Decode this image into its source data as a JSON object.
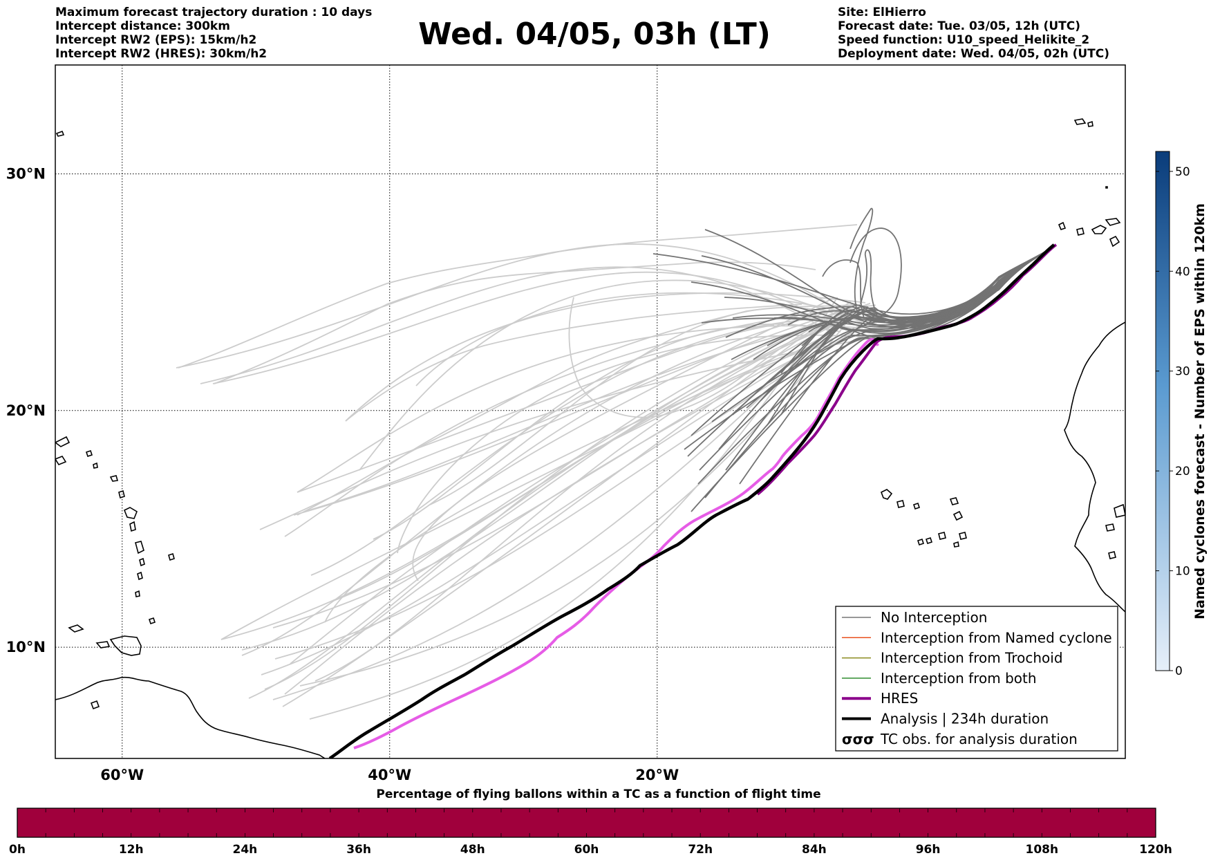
{
  "header": {
    "left": [
      "Maximum forecast trajectory duration : 10 days",
      "Intercept distance: 300km",
      "Intercept RW2 (EPS):  15km/h2",
      "Intercept RW2 (HRES): 30km/h2"
    ],
    "title": "Wed. 04/05, 03h (LT)",
    "right": [
      "Site: ElHierro",
      "Forecast date: Tue. 03/05, 12h (UTC)",
      "Speed function: U10_speed_Helikite_2",
      "Deployment date: Wed. 04/05, 02h (UTC)"
    ]
  },
  "map": {
    "lon_range": [
      -65,
      15
    ],
    "lat_range": [
      5.3,
      34.6
    ],
    "lon_ticks": [
      {
        "value": -60,
        "label": "60°W"
      },
      {
        "value": -40,
        "label": "40°W"
      },
      {
        "value": -20,
        "label": "20°W"
      }
    ],
    "lat_ticks": [
      {
        "value": 10,
        "label": "10°N"
      },
      {
        "value": 20,
        "label": "20°N"
      },
      {
        "value": 30,
        "label": "30°N"
      }
    ],
    "grid": "dotted"
  },
  "legend": {
    "items": [
      {
        "label": "No Interception",
        "color": "#777777",
        "style": "thin"
      },
      {
        "label": "Interception from Named cyclone",
        "color": "#e8501e",
        "style": "thin"
      },
      {
        "label": "Interception from Trochoid",
        "color": "#8a8a1e",
        "style": "thin"
      },
      {
        "label": "Interception from both",
        "color": "#2e8b2e",
        "style": "thin"
      },
      {
        "label": "HRES",
        "color": "#8b008b",
        "style": "thick"
      },
      {
        "label": "Analysis | 234h duration",
        "color": "#000000",
        "style": "thick"
      },
      {
        "label": "TC obs. for analysis duration",
        "color": "#000000",
        "style": "symbol",
        "symbol": "σσσ"
      }
    ]
  },
  "colorbar": {
    "title": "Named cyclones forecast - Number of EPS within 120km",
    "min": 0,
    "max": 52,
    "ticks": [
      0,
      10,
      20,
      30,
      40,
      50
    ],
    "color_low": "#e6eff9",
    "color_high": "#0a3c7a"
  },
  "timebar": {
    "title": "Percentage of flying ballons within a TC as a function of flight time",
    "ticks": [
      "0h",
      "12h",
      "24h",
      "36h",
      "48h",
      "60h",
      "72h",
      "84h",
      "96h",
      "108h",
      "120h"
    ],
    "fill_color": "#a0003c"
  }
}
